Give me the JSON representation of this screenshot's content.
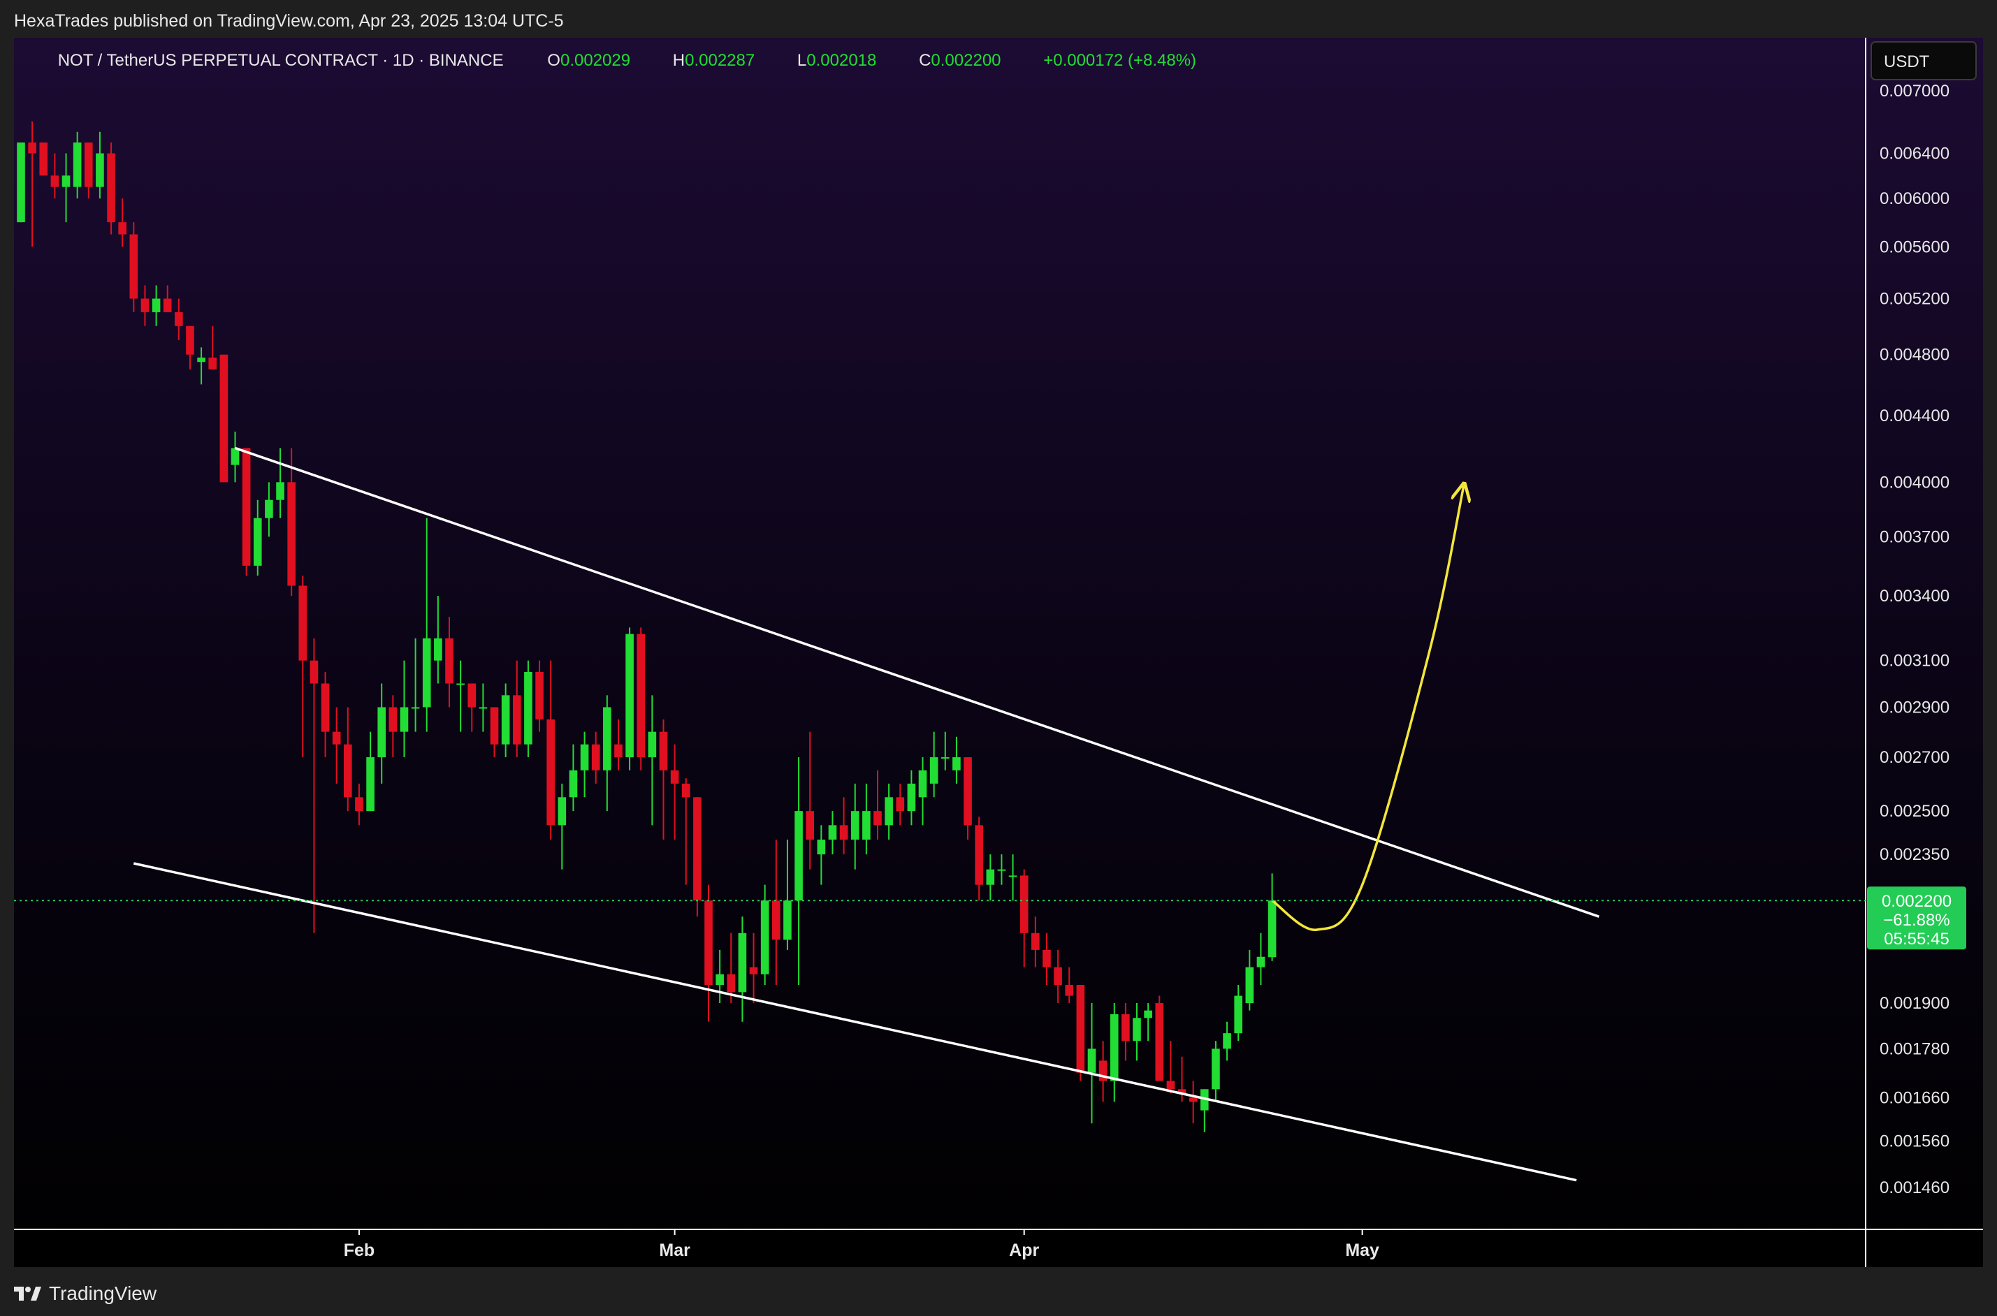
{
  "header": {
    "publisher": "HexaTrades published on TradingView.com, Apr 23, 2025 13:04 UTC-5"
  },
  "symbol_bar": {
    "title": "NOT / TetherUS PERPETUAL CONTRACT · 1D · BINANCE",
    "o_label": "O",
    "o_value": "0.002029",
    "h_label": "H",
    "h_value": "0.002287",
    "l_label": "L",
    "l_value": "0.002018",
    "c_label": "C",
    "c_value": "0.002200",
    "change": "+0.000172 (+8.48%)"
  },
  "currency_button": "USDT",
  "price_tag": {
    "price": "0.002200",
    "change_pct": "−61.88%",
    "countdown": "05:55:45"
  },
  "footer": {
    "brand": "TradingView",
    "logo_icon": "tradingview-logo-icon"
  },
  "colors": {
    "up": "#22dd33",
    "down": "#e01020",
    "trendline": "#ffffff",
    "projection": "#f2e63a",
    "last_price": "#22cc55",
    "text": "#e8e8e8",
    "bg_top": "#1c0b33",
    "bg_bottom": "#000000"
  },
  "chart_data": {
    "type": "candlestick",
    "scale": "log",
    "y_ticks": [
      "0.007000",
      "0.006400",
      "0.006000",
      "0.005600",
      "0.005200",
      "0.004800",
      "0.004400",
      "0.004000",
      "0.003700",
      "0.003400",
      "0.003100",
      "0.002900",
      "0.002700",
      "0.002500",
      "0.002350",
      "0.001900",
      "0.001780",
      "0.001660",
      "0.001560",
      "0.001460"
    ],
    "x_ticks": [
      {
        "label": "Feb",
        "date": "2025-02-01"
      },
      {
        "label": "Mar",
        "date": "2025-03-01"
      },
      {
        "label": "Apr",
        "date": "2025-04-01"
      },
      {
        "label": "May",
        "date": "2025-05-01"
      }
    ],
    "ylim": [
      0.001375,
      0.00755
    ],
    "xlim": [
      "2025-01-02",
      "2025-05-19"
    ],
    "last_price": 0.0022,
    "candles": [
      {
        "date": "2025-01-02",
        "open": 0.0058,
        "high": 0.0065,
        "low": 0.0058,
        "close": 0.0065
      },
      {
        "date": "2025-01-03",
        "open": 0.0065,
        "high": 0.0067,
        "low": 0.0056,
        "close": 0.0064
      },
      {
        "date": "2025-01-04",
        "open": 0.0065,
        "high": 0.0065,
        "low": 0.0062,
        "close": 0.0062
      },
      {
        "date": "2025-01-05",
        "open": 0.0062,
        "high": 0.0064,
        "low": 0.006,
        "close": 0.0061
      },
      {
        "date": "2025-01-06",
        "open": 0.0061,
        "high": 0.0064,
        "low": 0.0058,
        "close": 0.0062
      },
      {
        "date": "2025-01-07",
        "open": 0.0061,
        "high": 0.0066,
        "low": 0.006,
        "close": 0.0065
      },
      {
        "date": "2025-01-08",
        "open": 0.0065,
        "high": 0.0065,
        "low": 0.006,
        "close": 0.0061
      },
      {
        "date": "2025-01-09",
        "open": 0.0061,
        "high": 0.0066,
        "low": 0.006,
        "close": 0.0064
      },
      {
        "date": "2025-01-10",
        "open": 0.0064,
        "high": 0.0065,
        "low": 0.0057,
        "close": 0.0058
      },
      {
        "date": "2025-01-11",
        "open": 0.0058,
        "high": 0.006,
        "low": 0.0056,
        "close": 0.0057
      },
      {
        "date": "2025-01-12",
        "open": 0.0057,
        "high": 0.0058,
        "low": 0.0051,
        "close": 0.0052
      },
      {
        "date": "2025-01-13",
        "open": 0.0052,
        "high": 0.0053,
        "low": 0.005,
        "close": 0.0051
      },
      {
        "date": "2025-01-14",
        "open": 0.0051,
        "high": 0.0053,
        "low": 0.005,
        "close": 0.0052
      },
      {
        "date": "2025-01-15",
        "open": 0.0052,
        "high": 0.0053,
        "low": 0.0051,
        "close": 0.0051
      },
      {
        "date": "2025-01-16",
        "open": 0.0051,
        "high": 0.0052,
        "low": 0.0049,
        "close": 0.005
      },
      {
        "date": "2025-01-17",
        "open": 0.005,
        "high": 0.005,
        "low": 0.0047,
        "close": 0.0048
      },
      {
        "date": "2025-01-18",
        "open": 0.00475,
        "high": 0.00485,
        "low": 0.0046,
        "close": 0.00478
      },
      {
        "date": "2025-01-19",
        "open": 0.00478,
        "high": 0.005,
        "low": 0.0047,
        "close": 0.0047
      },
      {
        "date": "2025-01-20",
        "open": 0.0048,
        "high": 0.0048,
        "low": 0.004,
        "close": 0.004
      },
      {
        "date": "2025-01-21",
        "open": 0.0041,
        "high": 0.0043,
        "low": 0.004,
        "close": 0.0042
      },
      {
        "date": "2025-01-22",
        "open": 0.0042,
        "high": 0.0042,
        "low": 0.0035,
        "close": 0.00355
      },
      {
        "date": "2025-01-23",
        "open": 0.00355,
        "high": 0.0039,
        "low": 0.0035,
        "close": 0.0038
      },
      {
        "date": "2025-01-24",
        "open": 0.0038,
        "high": 0.004,
        "low": 0.0037,
        "close": 0.0039
      },
      {
        "date": "2025-01-25",
        "open": 0.0039,
        "high": 0.0042,
        "low": 0.0038,
        "close": 0.004
      },
      {
        "date": "2025-01-26",
        "open": 0.004,
        "high": 0.0042,
        "low": 0.0034,
        "close": 0.00345
      },
      {
        "date": "2025-01-27",
        "open": 0.00345,
        "high": 0.0035,
        "low": 0.0027,
        "close": 0.0031
      },
      {
        "date": "2025-01-28",
        "open": 0.0031,
        "high": 0.0032,
        "low": 0.0021,
        "close": 0.003
      },
      {
        "date": "2025-01-29",
        "open": 0.003,
        "high": 0.00305,
        "low": 0.0027,
        "close": 0.0028
      },
      {
        "date": "2025-01-30",
        "open": 0.0028,
        "high": 0.0029,
        "low": 0.0026,
        "close": 0.00275
      },
      {
        "date": "2025-01-31",
        "open": 0.00275,
        "high": 0.0029,
        "low": 0.0025,
        "close": 0.00255
      },
      {
        "date": "2025-02-01",
        "open": 0.00255,
        "high": 0.0026,
        "low": 0.00245,
        "close": 0.0025
      },
      {
        "date": "2025-02-02",
        "open": 0.0025,
        "high": 0.0028,
        "low": 0.0025,
        "close": 0.0027
      },
      {
        "date": "2025-02-03",
        "open": 0.0027,
        "high": 0.003,
        "low": 0.0026,
        "close": 0.0029
      },
      {
        "date": "2025-02-04",
        "open": 0.0029,
        "high": 0.00295,
        "low": 0.0027,
        "close": 0.0028
      },
      {
        "date": "2025-02-05",
        "open": 0.0028,
        "high": 0.0031,
        "low": 0.0027,
        "close": 0.0029
      },
      {
        "date": "2025-02-06",
        "open": 0.0029,
        "high": 0.0032,
        "low": 0.0028,
        "close": 0.0029
      },
      {
        "date": "2025-02-07",
        "open": 0.0029,
        "high": 0.0038,
        "low": 0.0028,
        "close": 0.0032
      },
      {
        "date": "2025-02-08",
        "open": 0.0031,
        "high": 0.0034,
        "low": 0.003,
        "close": 0.0032
      },
      {
        "date": "2025-02-09",
        "open": 0.0032,
        "high": 0.0033,
        "low": 0.0029,
        "close": 0.003
      },
      {
        "date": "2025-02-10",
        "open": 0.003,
        "high": 0.0031,
        "low": 0.0028,
        "close": 0.003
      },
      {
        "date": "2025-02-11",
        "open": 0.003,
        "high": 0.003,
        "low": 0.0028,
        "close": 0.0029
      },
      {
        "date": "2025-02-12",
        "open": 0.0029,
        "high": 0.003,
        "low": 0.0028,
        "close": 0.0029
      },
      {
        "date": "2025-02-13",
        "open": 0.0029,
        "high": 0.0029,
        "low": 0.0027,
        "close": 0.00275
      },
      {
        "date": "2025-02-14",
        "open": 0.00275,
        "high": 0.003,
        "low": 0.0027,
        "close": 0.00295
      },
      {
        "date": "2025-02-15",
        "open": 0.00295,
        "high": 0.0031,
        "low": 0.0027,
        "close": 0.00275
      },
      {
        "date": "2025-02-16",
        "open": 0.00275,
        "high": 0.0031,
        "low": 0.0027,
        "close": 0.00305
      },
      {
        "date": "2025-02-17",
        "open": 0.00305,
        "high": 0.0031,
        "low": 0.0028,
        "close": 0.00285
      },
      {
        "date": "2025-02-18",
        "open": 0.00285,
        "high": 0.0031,
        "low": 0.0024,
        "close": 0.00245
      },
      {
        "date": "2025-02-19",
        "open": 0.00245,
        "high": 0.0026,
        "low": 0.0023,
        "close": 0.00255
      },
      {
        "date": "2025-02-20",
        "open": 0.00255,
        "high": 0.00275,
        "low": 0.0025,
        "close": 0.00265
      },
      {
        "date": "2025-02-21",
        "open": 0.00265,
        "high": 0.0028,
        "low": 0.00255,
        "close": 0.00275
      },
      {
        "date": "2025-02-22",
        "open": 0.00275,
        "high": 0.0028,
        "low": 0.0026,
        "close": 0.00265
      },
      {
        "date": "2025-02-23",
        "open": 0.00265,
        "high": 0.00295,
        "low": 0.0025,
        "close": 0.0029
      },
      {
        "date": "2025-02-24",
        "open": 0.00275,
        "high": 0.00285,
        "low": 0.00265,
        "close": 0.0027
      },
      {
        "date": "2025-02-25",
        "open": 0.0027,
        "high": 0.00325,
        "low": 0.00265,
        "close": 0.00322
      },
      {
        "date": "2025-02-26",
        "open": 0.00322,
        "high": 0.00325,
        "low": 0.00265,
        "close": 0.0027
      },
      {
        "date": "2025-02-27",
        "open": 0.0027,
        "high": 0.00295,
        "low": 0.00245,
        "close": 0.0028
      },
      {
        "date": "2025-02-28",
        "open": 0.0028,
        "high": 0.00285,
        "low": 0.0024,
        "close": 0.00265
      },
      {
        "date": "2025-03-01",
        "open": 0.00265,
        "high": 0.00275,
        "low": 0.0024,
        "close": 0.0026
      },
      {
        "date": "2025-03-02",
        "open": 0.0026,
        "high": 0.00262,
        "low": 0.00225,
        "close": 0.00255
      },
      {
        "date": "2025-03-03",
        "open": 0.00255,
        "high": 0.00255,
        "low": 0.00215,
        "close": 0.0022
      },
      {
        "date": "2025-03-04",
        "open": 0.0022,
        "high": 0.00225,
        "low": 0.00185,
        "close": 0.00195
      },
      {
        "date": "2025-03-05",
        "open": 0.00195,
        "high": 0.00205,
        "low": 0.0019,
        "close": 0.00198
      },
      {
        "date": "2025-03-06",
        "open": 0.00198,
        "high": 0.0021,
        "low": 0.0019,
        "close": 0.00193
      },
      {
        "date": "2025-03-07",
        "open": 0.00193,
        "high": 0.00215,
        "low": 0.00185,
        "close": 0.0021
      },
      {
        "date": "2025-03-08",
        "open": 0.002,
        "high": 0.0021,
        "low": 0.0019,
        "close": 0.00198
      },
      {
        "date": "2025-03-09",
        "open": 0.00198,
        "high": 0.00225,
        "low": 0.00195,
        "close": 0.0022
      },
      {
        "date": "2025-03-10",
        "open": 0.0022,
        "high": 0.0024,
        "low": 0.00195,
        "close": 0.00208
      },
      {
        "date": "2025-03-11",
        "open": 0.00208,
        "high": 0.0024,
        "low": 0.00205,
        "close": 0.0022
      },
      {
        "date": "2025-03-12",
        "open": 0.0022,
        "high": 0.0027,
        "low": 0.00195,
        "close": 0.0025
      },
      {
        "date": "2025-03-13",
        "open": 0.0025,
        "high": 0.0028,
        "low": 0.0023,
        "close": 0.0024
      },
      {
        "date": "2025-03-14",
        "open": 0.00235,
        "high": 0.00245,
        "low": 0.00225,
        "close": 0.0024
      },
      {
        "date": "2025-03-15",
        "open": 0.0024,
        "high": 0.0025,
        "low": 0.00235,
        "close": 0.00245
      },
      {
        "date": "2025-03-16",
        "open": 0.00245,
        "high": 0.00255,
        "low": 0.00235,
        "close": 0.0024
      },
      {
        "date": "2025-03-17",
        "open": 0.0024,
        "high": 0.0026,
        "low": 0.0023,
        "close": 0.0025
      },
      {
        "date": "2025-03-18",
        "open": 0.0024,
        "high": 0.0026,
        "low": 0.00235,
        "close": 0.0025
      },
      {
        "date": "2025-03-19",
        "open": 0.0025,
        "high": 0.00265,
        "low": 0.0024,
        "close": 0.00245
      },
      {
        "date": "2025-03-20",
        "open": 0.00245,
        "high": 0.0026,
        "low": 0.0024,
        "close": 0.00255
      },
      {
        "date": "2025-03-21",
        "open": 0.00255,
        "high": 0.0026,
        "low": 0.00245,
        "close": 0.0025
      },
      {
        "date": "2025-03-22",
        "open": 0.0025,
        "high": 0.00265,
        "low": 0.00245,
        "close": 0.0026
      },
      {
        "date": "2025-03-23",
        "open": 0.00255,
        "high": 0.0027,
        "low": 0.00245,
        "close": 0.00265
      },
      {
        "date": "2025-03-24",
        "open": 0.0026,
        "high": 0.0028,
        "low": 0.00255,
        "close": 0.0027
      },
      {
        "date": "2025-03-25",
        "open": 0.0027,
        "high": 0.0028,
        "low": 0.00265,
        "close": 0.0027
      },
      {
        "date": "2025-03-26",
        "open": 0.00265,
        "high": 0.00278,
        "low": 0.0026,
        "close": 0.0027
      },
      {
        "date": "2025-03-27",
        "open": 0.0027,
        "high": 0.0027,
        "low": 0.0024,
        "close": 0.00245
      },
      {
        "date": "2025-03-28",
        "open": 0.00245,
        "high": 0.00248,
        "low": 0.0022,
        "close": 0.00225
      },
      {
        "date": "2025-03-29",
        "open": 0.00225,
        "high": 0.00235,
        "low": 0.0022,
        "close": 0.0023
      },
      {
        "date": "2025-03-30",
        "open": 0.0023,
        "high": 0.00235,
        "low": 0.00225,
        "close": 0.0023
      },
      {
        "date": "2025-03-31",
        "open": 0.00228,
        "high": 0.00235,
        "low": 0.0022,
        "close": 0.00228
      },
      {
        "date": "2025-04-01",
        "open": 0.00228,
        "high": 0.0023,
        "low": 0.002,
        "close": 0.0021
      },
      {
        "date": "2025-04-02",
        "open": 0.0021,
        "high": 0.00215,
        "low": 0.002,
        "close": 0.00205
      },
      {
        "date": "2025-04-03",
        "open": 0.00205,
        "high": 0.0021,
        "low": 0.00195,
        "close": 0.002
      },
      {
        "date": "2025-04-04",
        "open": 0.002,
        "high": 0.00205,
        "low": 0.0019,
        "close": 0.00195
      },
      {
        "date": "2025-04-05",
        "open": 0.00195,
        "high": 0.002,
        "low": 0.0019,
        "close": 0.00192
      },
      {
        "date": "2025-04-06",
        "open": 0.00195,
        "high": 0.00195,
        "low": 0.0017,
        "close": 0.00172
      },
      {
        "date": "2025-04-07",
        "open": 0.00172,
        "high": 0.0019,
        "low": 0.0016,
        "close": 0.00178
      },
      {
        "date": "2025-04-08",
        "open": 0.00175,
        "high": 0.0018,
        "low": 0.00165,
        "close": 0.0017
      },
      {
        "date": "2025-04-09",
        "open": 0.0017,
        "high": 0.0019,
        "low": 0.00165,
        "close": 0.00187
      },
      {
        "date": "2025-04-10",
        "open": 0.00187,
        "high": 0.0019,
        "low": 0.00175,
        "close": 0.0018
      },
      {
        "date": "2025-04-11",
        "open": 0.0018,
        "high": 0.0019,
        "low": 0.00175,
        "close": 0.00186
      },
      {
        "date": "2025-04-12",
        "open": 0.00186,
        "high": 0.0019,
        "low": 0.0018,
        "close": 0.00188
      },
      {
        "date": "2025-04-13",
        "open": 0.0019,
        "high": 0.00192,
        "low": 0.0017,
        "close": 0.0017
      },
      {
        "date": "2025-04-14",
        "open": 0.0017,
        "high": 0.0018,
        "low": 0.00167,
        "close": 0.00168
      },
      {
        "date": "2025-04-15",
        "open": 0.00168,
        "high": 0.00176,
        "low": 0.00165,
        "close": 0.00167
      },
      {
        "date": "2025-04-16",
        "open": 0.00166,
        "high": 0.0017,
        "low": 0.0016,
        "close": 0.00165
      },
      {
        "date": "2025-04-17",
        "open": 0.00163,
        "high": 0.00168,
        "low": 0.00158,
        "close": 0.00168
      },
      {
        "date": "2025-04-18",
        "open": 0.00168,
        "high": 0.0018,
        "low": 0.00165,
        "close": 0.00178
      },
      {
        "date": "2025-04-19",
        "open": 0.00178,
        "high": 0.00185,
        "low": 0.00175,
        "close": 0.00182
      },
      {
        "date": "2025-04-20",
        "open": 0.00182,
        "high": 0.00195,
        "low": 0.0018,
        "close": 0.00192
      },
      {
        "date": "2025-04-21",
        "open": 0.0019,
        "high": 0.00205,
        "low": 0.00188,
        "close": 0.002
      },
      {
        "date": "2025-04-22",
        "open": 0.002,
        "high": 0.0021,
        "low": 0.00195,
        "close": 0.00203
      },
      {
        "date": "2025-04-23",
        "open": 0.002029,
        "high": 0.002287,
        "low": 0.002018,
        "close": 0.0022
      }
    ],
    "drawings": [
      {
        "kind": "trendline",
        "name": "upper-trendline",
        "points": [
          [
            "2025-01-21",
            0.0042
          ],
          [
            "2025-05-22",
            0.00215
          ]
        ]
      },
      {
        "kind": "trendline",
        "name": "lower-trendline",
        "points": [
          [
            "2025-01-12",
            0.00232
          ],
          [
            "2025-05-20",
            0.001475
          ]
        ]
      },
      {
        "kind": "projection-arrow",
        "name": "projection-arrow",
        "points": [
          [
            "2025-04-23",
            0.0022
          ],
          [
            "2025-04-27",
            0.00211
          ],
          [
            "2025-05-01",
            0.00225
          ],
          [
            "2025-05-07",
            0.00315
          ],
          [
            "2025-05-10",
            0.00398
          ]
        ]
      }
    ]
  }
}
